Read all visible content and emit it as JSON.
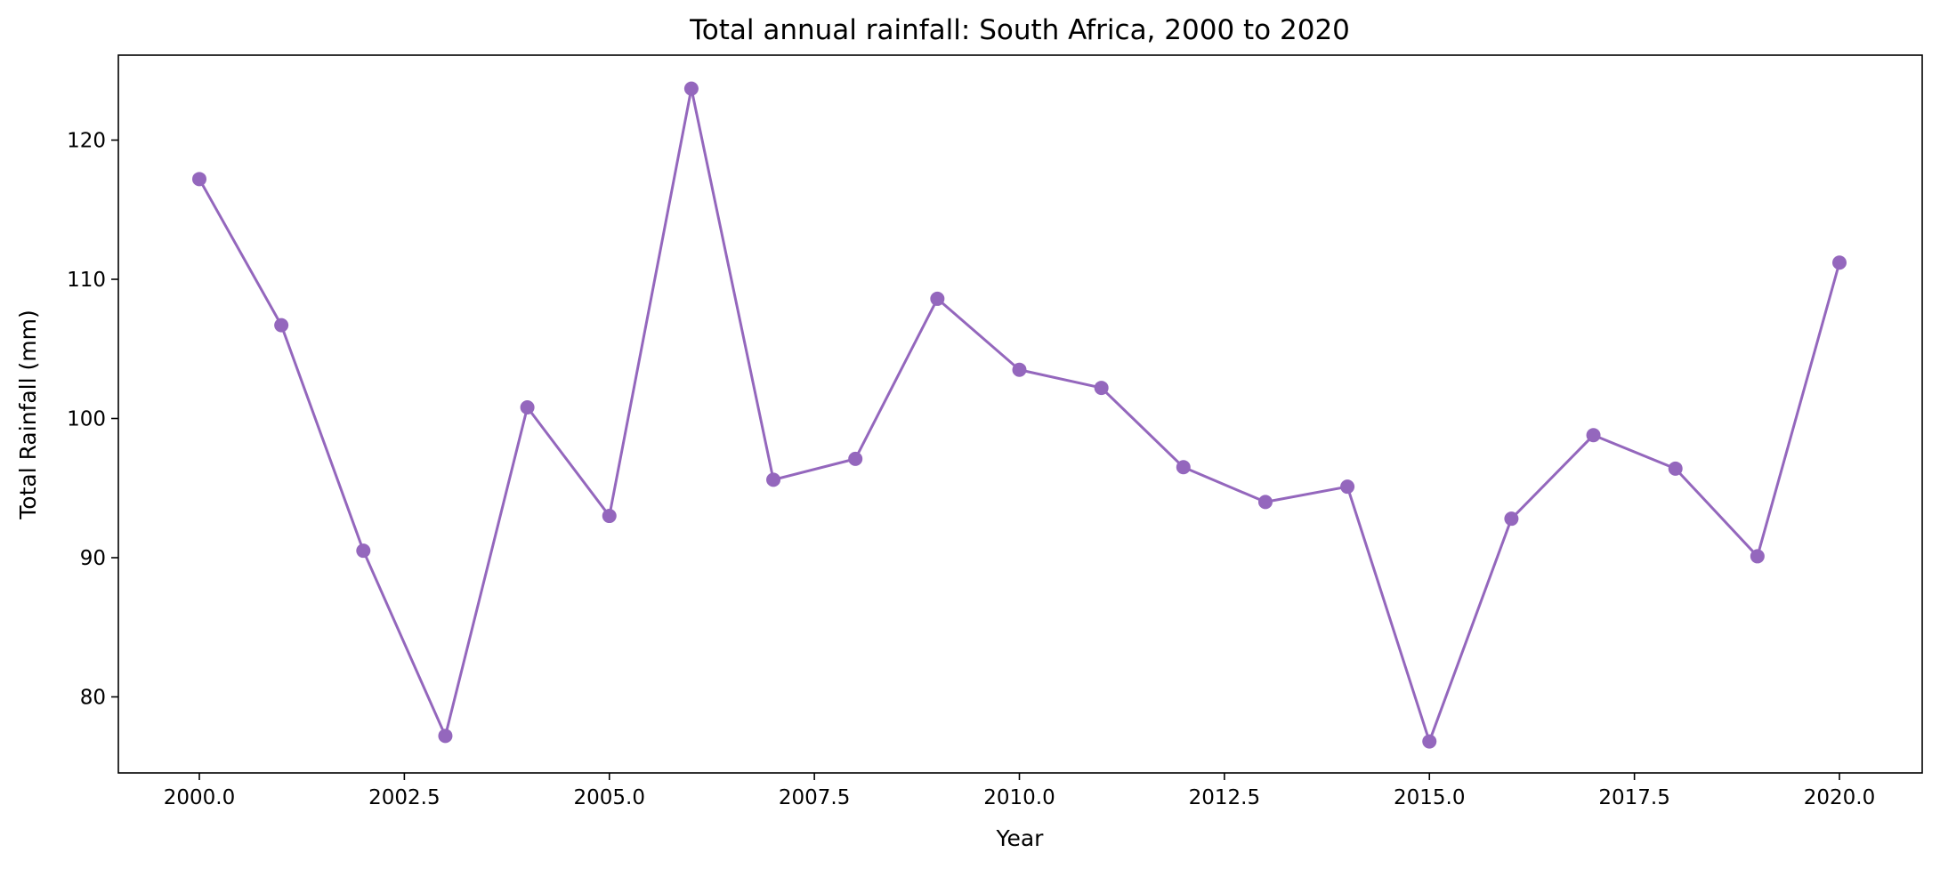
{
  "chart_data": {
    "type": "line",
    "title": "Total annual rainfall: South Africa, 2000 to 2020",
    "xlabel": "Year",
    "ylabel": "Total Rainfall (mm)",
    "xlim": [
      1999.0,
      2020.0
    ],
    "ylim": [
      74.9,
      126.1
    ],
    "xticks": [
      2000.0,
      2002.5,
      2005.0,
      2007.5,
      2010.0,
      2012.5,
      2015.0,
      2017.5,
      2020.0
    ],
    "xtick_labels": [
      "2000.0",
      "2002.5",
      "2005.0",
      "2007.5",
      "2010.0",
      "2012.5",
      "2015.0",
      "2017.5",
      "2020.0"
    ],
    "yticks": [
      80,
      90,
      100,
      110,
      120
    ],
    "ytick_labels": [
      "80",
      "90",
      "100",
      "110",
      "120"
    ],
    "grid": false,
    "series": [
      {
        "color": "#9467bd",
        "marker": "circle",
        "x": [
          2000,
          2001,
          2002,
          2003,
          2004,
          2005,
          2006,
          2007,
          2008,
          2009,
          2010,
          2011,
          2012,
          2013,
          2014,
          2015,
          2016,
          2017,
          2018,
          2019,
          2020
        ],
        "y": [
          117.2,
          106.7,
          90.5,
          77.2,
          100.8,
          93.0,
          123.7,
          95.6,
          97.1,
          108.6,
          103.5,
          102.2,
          96.5,
          94.0,
          95.1,
          76.8,
          92.8,
          98.8,
          96.4,
          90.1,
          111.2
        ]
      }
    ]
  }
}
